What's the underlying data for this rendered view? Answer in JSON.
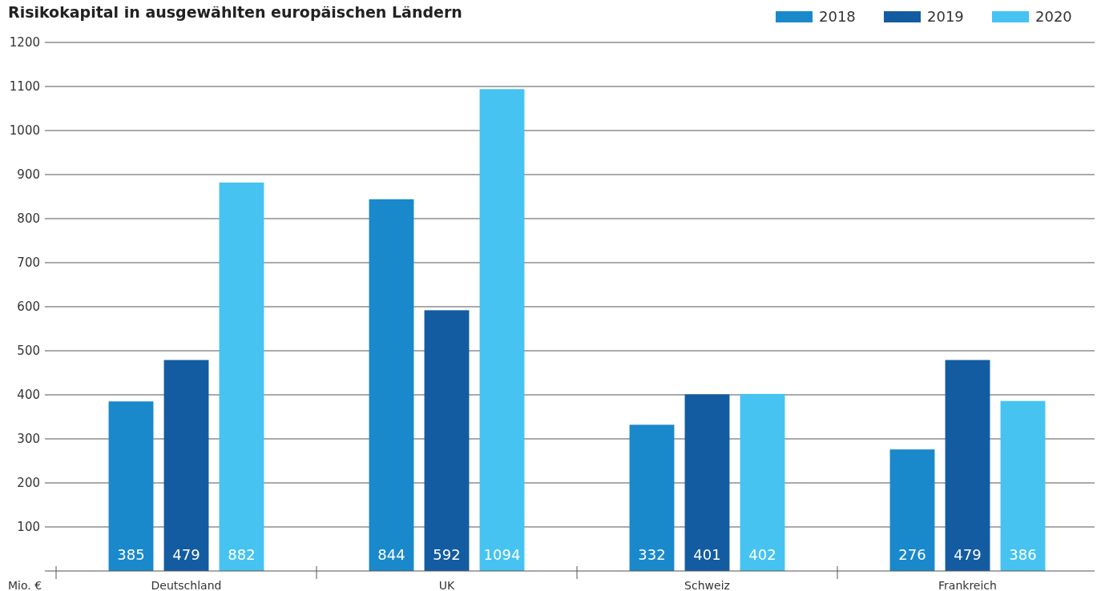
{
  "chart_data": {
    "type": "bar",
    "title": "Risikokapital in ausgewählten europäischen Ländern",
    "ylabel": "Mio. €",
    "categories": [
      "Deutschland",
      "UK",
      "Schweiz",
      "Frankreich"
    ],
    "series": [
      {
        "name": "2018",
        "color": "#1a89cb",
        "values": [
          385,
          844,
          332,
          276
        ]
      },
      {
        "name": "2019",
        "color": "#135ca1",
        "values": [
          479,
          592,
          401,
          479
        ]
      },
      {
        "name": "2020",
        "color": "#46c3f1",
        "values": [
          882,
          1094,
          402,
          386
        ]
      }
    ],
    "ylim": [
      0,
      1200
    ],
    "yticks": [
      100,
      200,
      300,
      400,
      500,
      600,
      700,
      800,
      900,
      1000,
      1100,
      1200
    ],
    "grid": "y",
    "legend": "top right",
    "data_labels": true
  }
}
